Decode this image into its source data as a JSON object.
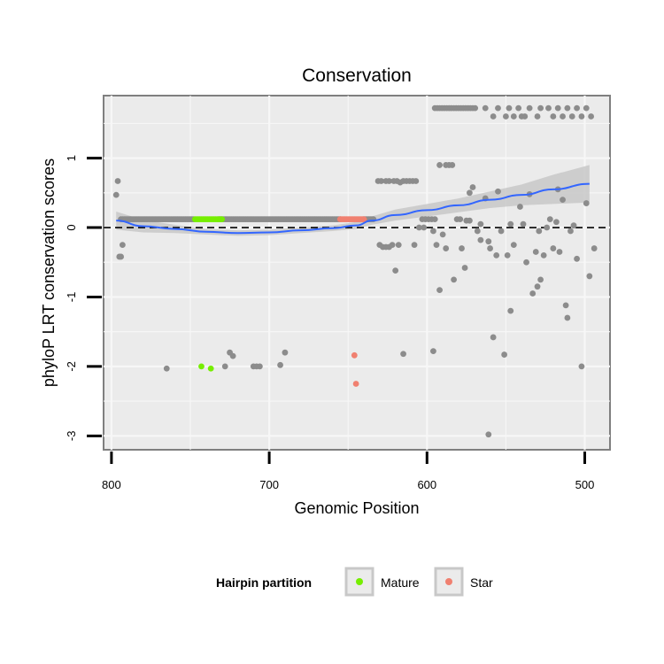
{
  "chart_data": {
    "type": "scatter",
    "title": "Conservation",
    "xlabel": "Genomic Position",
    "ylabel": "phyloP LRT conservation scores",
    "x_reversed": true,
    "xlim": [
      805,
      484
    ],
    "ylim": [
      -3.2,
      1.9
    ],
    "x_ticks": [
      800,
      700,
      600,
      500
    ],
    "y_ticks": [
      -3,
      -2,
      -1,
      0,
      1
    ],
    "grid": true,
    "reference_line": {
      "y": 0,
      "style": "dashed",
      "color": "#000000"
    },
    "legend": {
      "title": "Hairpin partition",
      "position": "bottom",
      "entries": [
        {
          "label": "Mature",
          "color": "#76EE00"
        },
        {
          "label": "Star",
          "color": "#F08070"
        }
      ]
    },
    "colors": {
      "other": "#8C8C8C",
      "Mature": "#76EE00",
      "Star": "#F08070",
      "smooth": "#3366FF",
      "band": "#C8C8C8",
      "panel": "#EBEBEB",
      "grid": "#F7F7F7"
    },
    "series": [
      {
        "group": "other",
        "x_range": [
          794,
          748,
          1
        ],
        "points": [
          [
            797,
            0.47
          ],
          [
            796,
            0.67
          ],
          [
            795,
            -0.42
          ],
          [
            794,
            -0.42
          ],
          [
            793,
            -0.25
          ],
          [
            765,
            -2.03
          ],
          [
            728,
            -2.0
          ],
          [
            725,
            -1.8
          ],
          [
            723,
            -1.85
          ],
          [
            710,
            -2.0
          ],
          [
            708,
            -2.0
          ],
          [
            706,
            -2.0
          ],
          [
            693,
            -1.98
          ],
          [
            690,
            -1.8
          ],
          [
            615,
            -1.82
          ],
          [
            583,
            -0.75
          ]
        ]
      },
      {
        "group": "other",
        "x_range": [
          732,
          655,
          1
        ],
        "points": []
      },
      {
        "group": "other",
        "x_range": [
          640,
          634,
          1
        ],
        "points": []
      },
      {
        "group": "other",
        "points": [
          [
            631,
            0.67
          ],
          [
            629,
            0.67
          ],
          [
            626,
            0.67
          ],
          [
            624,
            0.67
          ],
          [
            621,
            0.67
          ],
          [
            619,
            0.67
          ],
          [
            617,
            0.65
          ],
          [
            615,
            0.67
          ],
          [
            613,
            0.67
          ],
          [
            611,
            0.67
          ],
          [
            609,
            0.67
          ],
          [
            607,
            0.67
          ],
          [
            630,
            -0.25
          ],
          [
            628,
            -0.28
          ],
          [
            626,
            -0.28
          ],
          [
            624,
            -0.28
          ],
          [
            622,
            -0.25
          ],
          [
            618,
            -0.25
          ],
          [
            620,
            -0.62
          ],
          [
            597,
            0.12
          ],
          [
            595,
            0.12
          ],
          [
            603,
            0.12
          ],
          [
            601,
            0.12
          ],
          [
            599,
            0.12
          ],
          [
            605,
            0.0
          ],
          [
            602,
            0.0
          ],
          [
            596,
            -1.78
          ],
          [
            608,
            -0.25
          ],
          [
            596,
            -0.05
          ],
          [
            594,
            -0.25
          ],
          [
            592,
            -0.9
          ],
          [
            590,
            -0.1
          ],
          [
            588,
            -0.3
          ],
          [
            592,
            0.9
          ],
          [
            588,
            0.9
          ],
          [
            586,
            0.9
          ],
          [
            584,
            0.9
          ],
          [
            581,
            0.12
          ],
          [
            579,
            0.12
          ],
          [
            575,
            0.1
          ],
          [
            578,
            -0.3
          ],
          [
            576,
            -0.58
          ],
          [
            573,
            0.1
          ],
          [
            573,
            0.5
          ],
          [
            571,
            0.58
          ],
          [
            568,
            -0.05
          ],
          [
            566,
            -0.18
          ],
          [
            566,
            0.05
          ],
          [
            561,
            -0.2
          ],
          [
            563,
            0.42
          ],
          [
            560,
            -0.3
          ],
          [
            561,
            -2.98
          ],
          [
            558,
            -1.58
          ],
          [
            556,
            -0.4
          ],
          [
            555,
            0.52
          ],
          [
            553,
            -0.05
          ],
          [
            551,
            -1.83
          ],
          [
            549,
            -0.4
          ],
          [
            547,
            -1.2
          ],
          [
            547,
            0.05
          ],
          [
            545,
            -0.25
          ],
          [
            541,
            0.3
          ],
          [
            539,
            0.05
          ],
          [
            537,
            -0.5
          ],
          [
            535,
            0.48
          ],
          [
            533,
            -0.95
          ],
          [
            531,
            -0.35
          ],
          [
            530,
            -0.85
          ],
          [
            528,
            -0.75
          ],
          [
            529,
            -0.05
          ],
          [
            526,
            -0.4
          ],
          [
            524,
            0.0
          ],
          [
            522,
            0.12
          ],
          [
            520,
            -0.3
          ],
          [
            517,
            0.55
          ],
          [
            518,
            0.08
          ],
          [
            516,
            -0.35
          ],
          [
            514,
            0.4
          ],
          [
            512,
            -1.12
          ],
          [
            511,
            -1.3
          ],
          [
            509,
            -0.05
          ],
          [
            507,
            0.03
          ],
          [
            505,
            -0.45
          ],
          [
            502,
            -2.0
          ],
          [
            499,
            0.35
          ],
          [
            497,
            -0.7
          ],
          [
            494,
            -0.3
          ]
        ]
      },
      {
        "group": "other",
        "x_range": [
          595,
          569,
          1.5
        ],
        "points": [
          [
            563,
            1.72
          ],
          [
            558,
            1.6
          ],
          [
            555,
            1.72
          ],
          [
            550,
            1.6
          ],
          [
            548,
            1.72
          ],
          [
            545,
            1.6
          ],
          [
            542,
            1.72
          ],
          [
            540,
            1.6
          ],
          [
            538,
            1.6
          ],
          [
            535,
            1.72
          ],
          [
            530,
            1.6
          ],
          [
            528,
            1.72
          ],
          [
            523,
            1.72
          ],
          [
            520,
            1.6
          ],
          [
            517,
            1.72
          ],
          [
            514,
            1.6
          ],
          [
            511,
            1.72
          ],
          [
            508,
            1.6
          ],
          [
            505,
            1.72
          ],
          [
            502,
            1.6
          ],
          [
            499,
            1.72
          ],
          [
            496,
            1.6
          ]
        ]
      },
      {
        "group": "Mature",
        "x_range": [
          747,
          730,
          1
        ],
        "points": [
          [
            743,
            -2.0
          ],
          [
            737,
            -2.03
          ]
        ]
      },
      {
        "group": "Star",
        "x_range": [
          655,
          640,
          1
        ],
        "points": [
          [
            646,
            -1.84
          ],
          [
            645,
            -2.25
          ]
        ]
      }
    ],
    "smooth": {
      "x": [
        797,
        780,
        760,
        740,
        720,
        700,
        680,
        660,
        645,
        635,
        620,
        600,
        580,
        560,
        540,
        520,
        497
      ],
      "y": [
        0.1,
        0.02,
        -0.02,
        -0.06,
        -0.08,
        -0.07,
        -0.04,
        -0.01,
        0.03,
        0.1,
        0.18,
        0.25,
        0.32,
        0.4,
        0.47,
        0.55,
        0.63
      ],
      "band_lower": [
        -0.03,
        -0.07,
        -0.08,
        -0.1,
        -0.12,
        -0.11,
        -0.08,
        -0.05,
        -0.02,
        0.04,
        0.1,
        0.16,
        0.22,
        0.28,
        0.32,
        0.34,
        0.36
      ],
      "band_upper": [
        0.23,
        0.11,
        0.04,
        -0.02,
        -0.04,
        -0.03,
        0.0,
        0.03,
        0.08,
        0.16,
        0.26,
        0.34,
        0.42,
        0.52,
        0.62,
        0.76,
        0.9
      ]
    }
  }
}
